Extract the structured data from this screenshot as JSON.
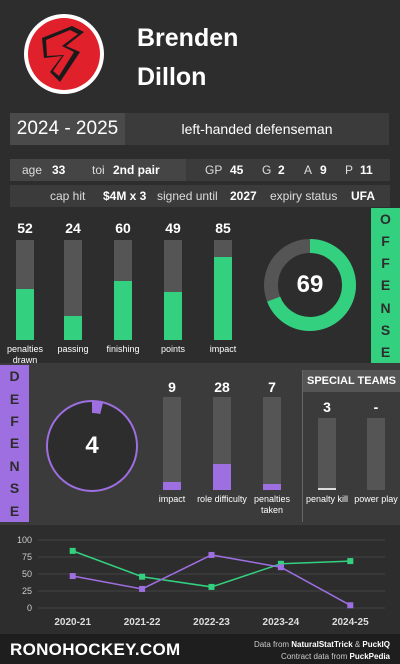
{
  "player": {
    "first_name": "Brenden",
    "last_name": "Dillon"
  },
  "season": "2024 - 2025",
  "position": "left-handed defenseman",
  "row1": {
    "age_label": "age",
    "age": "33",
    "toi_label": "toi",
    "toi": "2nd pair",
    "gp_label": "GP",
    "gp": "45",
    "g_label": "G",
    "g": "2",
    "a_label": "A",
    "a": "9",
    "p_label": "P",
    "p": "11"
  },
  "row2": {
    "cap_label": "cap hit",
    "cap": "$4M x 3",
    "signed_label": "signed until",
    "signed": "2027",
    "expiry_label": "expiry status",
    "expiry": "UFA"
  },
  "offense": {
    "title_letters": [
      "O",
      "F",
      "F",
      "E",
      "N",
      "S",
      "E"
    ],
    "score": "69",
    "score_value": 69,
    "accent": "#33d17f",
    "bars": [
      {
        "label": "penalties drawn",
        "value": "52",
        "v": 52
      },
      {
        "label": "passing",
        "value": "24",
        "v": 24
      },
      {
        "label": "finishing",
        "value": "60",
        "v": 60
      },
      {
        "label": "points",
        "value": "49",
        "v": 49
      },
      {
        "label": "impact",
        "value": "85",
        "v": 85
      }
    ]
  },
  "defense": {
    "title_letters": [
      "D",
      "E",
      "F",
      "E",
      "N",
      "S",
      "E"
    ],
    "score": "4",
    "score_value": 4,
    "accent": "#9e6fe0",
    "bars": [
      {
        "label": "impact",
        "value": "9",
        "v": 9
      },
      {
        "label": "role difficulty",
        "value": "28",
        "v": 28
      },
      {
        "label": "penalties taken",
        "value": "7",
        "v": 7
      }
    ]
  },
  "special_teams": {
    "title": "SPECIAL TEAMS",
    "bars": [
      {
        "label": "penalty kill",
        "value": "3",
        "v": 3
      },
      {
        "label": "power play",
        "value": "-",
        "v": 0
      }
    ]
  },
  "chart_data": {
    "type": "line",
    "categories": [
      "2020-21",
      "2021-22",
      "2022-23",
      "2023-24",
      "2024-25"
    ],
    "ylim": [
      0,
      100
    ],
    "yticks": [
      "100",
      "75",
      "50",
      "25",
      "0"
    ],
    "series": [
      {
        "color": "#33d17f",
        "values": [
          84,
          46,
          31,
          65,
          69
        ]
      },
      {
        "color": "#9e6fe0",
        "values": [
          47,
          28,
          78,
          60,
          4
        ]
      }
    ],
    "grid": true
  },
  "footer": {
    "logo": "RONOHOCKEY.COM",
    "src1_prefix": "Data from ",
    "src1_a": "NaturalStatTrick",
    "src1_mid": " & ",
    "src1_b": "PuckIQ",
    "src2_prefix": "Contract data from ",
    "src2_a": "PuckPedia"
  }
}
